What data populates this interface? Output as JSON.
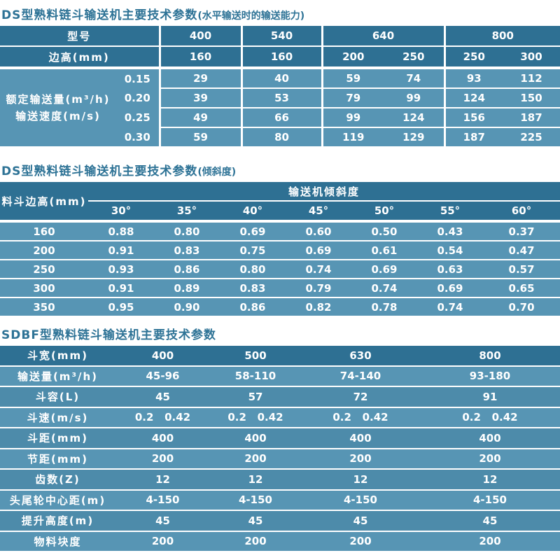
{
  "colors": {
    "header_bg": "#2e7093",
    "row_light": "#5795b4",
    "row_alt": "#4d8baa",
    "line": "#ffffff",
    "title": "#2e7396",
    "text": "#ffffff"
  },
  "table1": {
    "title_main": "DS型熟料链斗输送机主要技术参数",
    "title_paren": "(水平输送时的输送能力)",
    "model_label": "型号",
    "models": [
      "400",
      "540",
      "640",
      "800"
    ],
    "edge_label": "边高(mm)",
    "edge_values": [
      [
        "160"
      ],
      [
        "160"
      ],
      [
        "200",
        "250"
      ],
      [
        "250",
        "300"
      ]
    ],
    "left_label_line1": "额定输送量(m³/h)",
    "left_label_line2": "输送速度(m/s)",
    "speed_rows": [
      {
        "speed": "0.15",
        "values": [
          "29",
          "40",
          "59",
          "74",
          "93",
          "112"
        ]
      },
      {
        "speed": "0.20",
        "values": [
          "39",
          "53",
          "79",
          "99",
          "124",
          "150"
        ]
      },
      {
        "speed": "0.25",
        "values": [
          "49",
          "66",
          "99",
          "124",
          "156",
          "187"
        ]
      },
      {
        "speed": "0.30",
        "values": [
          "59",
          "80",
          "119",
          "129",
          "187",
          "225"
        ]
      }
    ]
  },
  "table2": {
    "title_main": "DS型熟料链斗输送机主要技术参数",
    "title_paren": "(倾斜度)",
    "row_label": "料斗边高(mm)",
    "span_label": "输送机倾斜度",
    "angles": [
      "30°",
      "35°",
      "40°",
      "45°",
      "50°",
      "55°",
      "60°"
    ],
    "rows": [
      {
        "height": "160",
        "values": [
          "0.88",
          "0.80",
          "0.69",
          "0.60",
          "0.50",
          "0.43",
          "0.37"
        ]
      },
      {
        "height": "200",
        "values": [
          "0.91",
          "0.83",
          "0.75",
          "0.69",
          "0.61",
          "0.54",
          "0.47"
        ]
      },
      {
        "height": "250",
        "values": [
          "0.93",
          "0.86",
          "0.80",
          "0.74",
          "0.69",
          "0.63",
          "0.57"
        ]
      },
      {
        "height": "300",
        "values": [
          "0.91",
          "0.89",
          "0.83",
          "0.79",
          "0.74",
          "0.69",
          "0.65"
        ]
      },
      {
        "height": "350",
        "values": [
          "0.95",
          "0.90",
          "0.86",
          "0.82",
          "0.78",
          "0.74",
          "0.70"
        ]
      }
    ]
  },
  "table3": {
    "title": "SDBF型熟料链斗输送机主要技术参数",
    "rows": [
      {
        "label": "斗宽(mm)",
        "values": [
          "400",
          "500",
          "630",
          "800"
        ],
        "header": true
      },
      {
        "label": "输送量(m³/h)",
        "values": [
          "45-96",
          "58-110",
          "74-140",
          "93-180"
        ]
      },
      {
        "label": "斗容(L)",
        "values": [
          "45",
          "57",
          "72",
          "91"
        ]
      },
      {
        "label": "斗速(m/s)",
        "values": [
          "0.2   0.42",
          "0.2   0.42",
          "0.2   0.42",
          "0.2   0.42"
        ]
      },
      {
        "label": "斗距(mm)",
        "values": [
          "400",
          "400",
          "400",
          "400"
        ]
      },
      {
        "label": "节距(mm)",
        "values": [
          "200",
          "200",
          "200",
          "200"
        ]
      },
      {
        "label": "齿数(Z)",
        "values": [
          "12",
          "12",
          "12",
          "12"
        ]
      },
      {
        "label": "头尾轮中心距(m)",
        "values": [
          "4-150",
          "4-150",
          "4-150",
          "4-150"
        ]
      },
      {
        "label": "提升高度(m)",
        "values": [
          "45",
          "45",
          "45",
          "45"
        ]
      },
      {
        "label": "物料块度",
        "values": [
          "200",
          "200",
          "200",
          "200"
        ]
      }
    ]
  }
}
